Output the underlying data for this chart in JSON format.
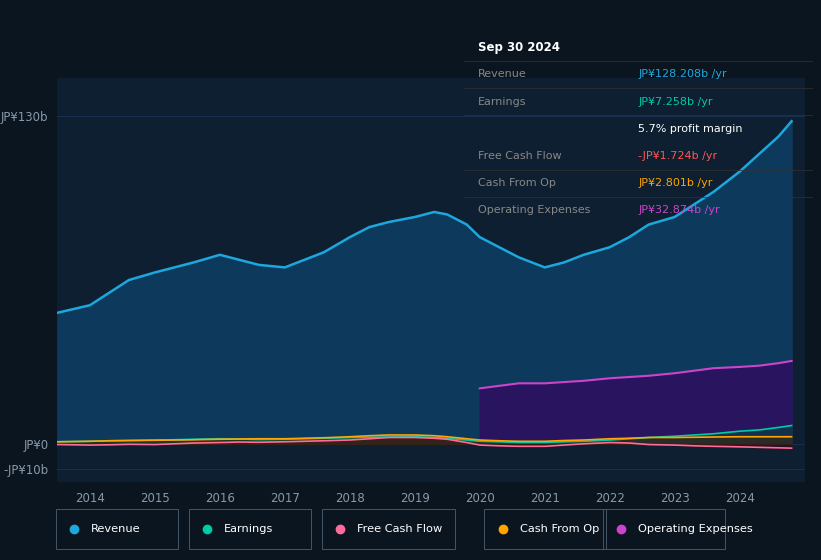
{
  "bg_color": "#0b1520",
  "plot_bg_color": "#0b1520",
  "chart_area_color": "#0d1f30",
  "years": [
    2013.5,
    2014.0,
    2014.3,
    2014.6,
    2015.0,
    2015.3,
    2015.6,
    2016.0,
    2016.3,
    2016.6,
    2017.0,
    2017.3,
    2017.6,
    2018.0,
    2018.3,
    2018.6,
    2019.0,
    2019.3,
    2019.5,
    2019.8,
    2020.0,
    2020.3,
    2020.6,
    2021.0,
    2021.3,
    2021.6,
    2022.0,
    2022.3,
    2022.6,
    2023.0,
    2023.3,
    2023.6,
    2024.0,
    2024.3,
    2024.6,
    2024.8
  ],
  "revenue": [
    52,
    55,
    60,
    65,
    68,
    70,
    72,
    75,
    73,
    71,
    70,
    73,
    76,
    82,
    86,
    88,
    90,
    92,
    91,
    87,
    82,
    78,
    74,
    70,
    72,
    75,
    78,
    82,
    87,
    90,
    95,
    100,
    108,
    115,
    122,
    128
  ],
  "earnings": [
    0.8,
    1.0,
    1.2,
    1.3,
    1.5,
    1.6,
    1.8,
    2.0,
    1.9,
    1.7,
    1.8,
    2.0,
    2.2,
    2.5,
    2.6,
    2.7,
    2.8,
    2.5,
    2.2,
    1.5,
    1.0,
    0.8,
    0.5,
    0.5,
    0.8,
    1.0,
    1.5,
    2.0,
    2.5,
    3.0,
    3.5,
    4.0,
    5.0,
    5.5,
    6.5,
    7.258
  ],
  "free_cash_flow": [
    -0.3,
    -0.5,
    -0.4,
    -0.2,
    -0.3,
    0.0,
    0.3,
    0.5,
    0.7,
    0.6,
    0.8,
    1.0,
    1.2,
    1.5,
    2.0,
    2.5,
    2.5,
    2.2,
    1.8,
    0.5,
    -0.5,
    -0.8,
    -1.0,
    -1.0,
    -0.5,
    0.0,
    0.5,
    0.3,
    -0.3,
    -0.5,
    -0.8,
    -1.0,
    -1.2,
    -1.4,
    -1.6,
    -1.724
  ],
  "cash_from_op": [
    0.8,
    1.0,
    1.2,
    1.3,
    1.4,
    1.5,
    1.6,
    1.8,
    1.9,
    2.0,
    2.0,
    2.2,
    2.4,
    2.8,
    3.2,
    3.5,
    3.5,
    3.2,
    2.8,
    2.0,
    1.5,
    1.2,
    1.0,
    1.0,
    1.3,
    1.5,
    2.0,
    2.2,
    2.5,
    2.5,
    2.6,
    2.7,
    2.8,
    2.8,
    2.8,
    2.801
  ],
  "opex_x": [
    2020.0,
    2020.3,
    2020.6,
    2021.0,
    2021.3,
    2021.6,
    2022.0,
    2022.3,
    2022.6,
    2023.0,
    2023.3,
    2023.6,
    2024.0,
    2024.3,
    2024.6,
    2024.8
  ],
  "opex_y": [
    22,
    23,
    24,
    24,
    24.5,
    25,
    26,
    26.5,
    27,
    28,
    29,
    30,
    30.5,
    31,
    32,
    32.874
  ],
  "revenue_line_color": "#1ca8dd",
  "revenue_fill_color": "#0d3a5c",
  "earnings_line_color": "#00c9a7",
  "earnings_fill_color": "#004d40",
  "fcf_line_color": "#ff6b9d",
  "fcf_fill_color": "#4a0020",
  "cashop_line_color": "#ffa500",
  "cashop_fill_color": "#3d2800",
  "opex_line_color": "#cc44cc",
  "opex_fill_color": "#2d1060",
  "ylim_min": -15,
  "ylim_max": 145,
  "xlim_min": 2013.5,
  "xlim_max": 2025.0,
  "ytick_labels": [
    "JP¥130b",
    "JP¥0",
    "-JP¥10b"
  ],
  "ytick_values": [
    130,
    0,
    -10
  ],
  "xlabel_years": [
    2014,
    2015,
    2016,
    2017,
    2018,
    2019,
    2020,
    2021,
    2022,
    2023,
    2024
  ],
  "grid_color": "#1a3050",
  "legend_items": [
    {
      "label": "Revenue",
      "color": "#1ca8dd"
    },
    {
      "label": "Earnings",
      "color": "#00c9a7"
    },
    {
      "label": "Free Cash Flow",
      "color": "#ff6b9d"
    },
    {
      "label": "Cash From Op",
      "color": "#ffa500"
    },
    {
      "label": "Operating Expenses",
      "color": "#cc44cc"
    }
  ],
  "infobox": {
    "title": "Sep 30 2024",
    "rows": [
      {
        "label": "Revenue",
        "value": "JP¥128.208b /yr",
        "value_color": "#1ca8dd"
      },
      {
        "label": "Earnings",
        "value": "JP¥7.258b /yr",
        "value_color": "#00c9a7"
      },
      {
        "label": "",
        "value": "5.7% profit margin",
        "value_color": "#ffffff"
      },
      {
        "label": "Free Cash Flow",
        "value": "-JP¥1.724b /yr",
        "value_color": "#ff5555"
      },
      {
        "label": "Cash From Op",
        "value": "JP¥2.801b /yr",
        "value_color": "#ffa500"
      },
      {
        "label": "Operating Expenses",
        "value": "JP¥32.874b /yr",
        "value_color": "#cc44cc"
      }
    ]
  }
}
